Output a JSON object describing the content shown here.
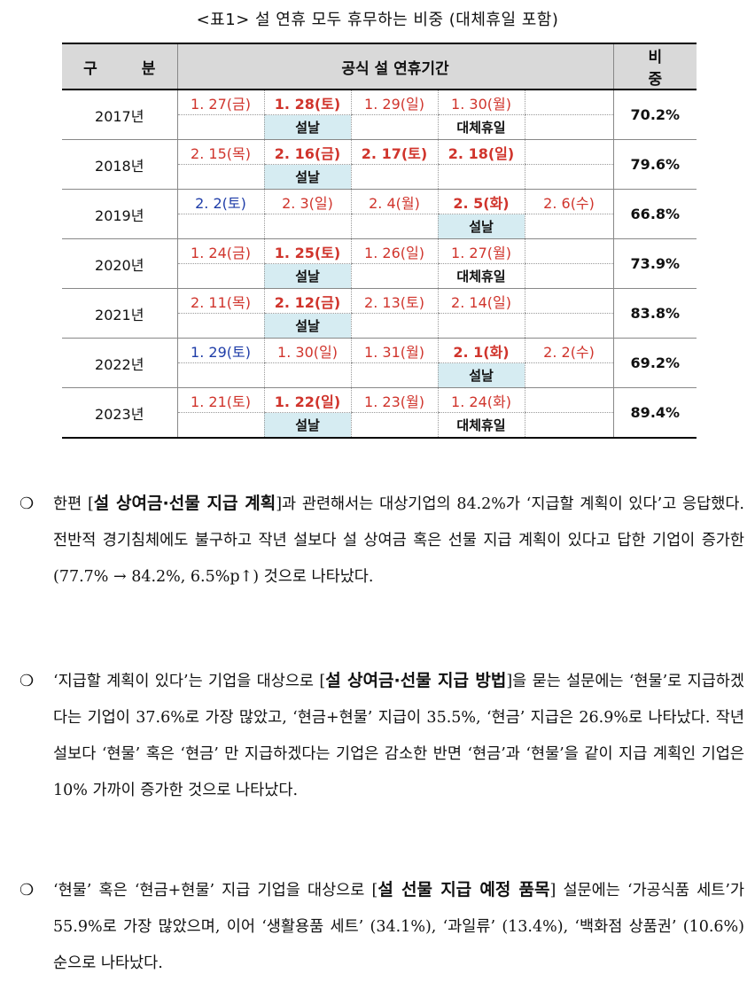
{
  "table": {
    "title": "<표1> 설 연휴 모두 휴무하는 비중 (대체휴일 포함)",
    "headers": {
      "year": "구 분",
      "period": "공식 설 연휴기간",
      "ratio": "비 중"
    },
    "rows": [
      {
        "year": "2017년",
        "ratio": "70.2%",
        "days": [
          {
            "text": "1. 27(금)"
          },
          {
            "text": "1. 28(토)",
            "bold": true
          },
          {
            "text": "1. 29(일)"
          },
          {
            "text": "1. 30(월)"
          },
          {
            "text": ""
          }
        ],
        "labels": [
          {
            "text": ""
          },
          {
            "text": "설날",
            "hl": true
          },
          {
            "text": ""
          },
          {
            "text": "대체휴일"
          },
          {
            "text": ""
          }
        ]
      },
      {
        "year": "2018년",
        "ratio": "79.6%",
        "days": [
          {
            "text": "2. 15(목)"
          },
          {
            "text": "2. 16(금)",
            "bold": true
          },
          {
            "text": "2. 17(토)",
            "bold": true
          },
          {
            "text": "2. 18(일)",
            "bold": true
          },
          {
            "text": ""
          }
        ],
        "labels": [
          {
            "text": ""
          },
          {
            "text": "설날",
            "hl": true
          },
          {
            "text": ""
          },
          {
            "text": ""
          },
          {
            "text": ""
          }
        ]
      },
      {
        "year": "2019년",
        "ratio": "66.8%",
        "days": [
          {
            "text": "2. 2(토)",
            "sat": true
          },
          {
            "text": "2. 3(일)"
          },
          {
            "text": "2. 4(월)"
          },
          {
            "text": "2. 5(화)",
            "bold": true
          },
          {
            "text": "2. 6(수)"
          }
        ],
        "labels": [
          {
            "text": ""
          },
          {
            "text": ""
          },
          {
            "text": ""
          },
          {
            "text": "설날",
            "hl": true
          },
          {
            "text": ""
          }
        ]
      },
      {
        "year": "2020년",
        "ratio": "73.9%",
        "days": [
          {
            "text": "1. 24(금)"
          },
          {
            "text": "1. 25(토)",
            "bold": true
          },
          {
            "text": "1. 26(일)"
          },
          {
            "text": "1. 27(월)"
          },
          {
            "text": ""
          }
        ],
        "labels": [
          {
            "text": ""
          },
          {
            "text": "설날",
            "hl": true
          },
          {
            "text": ""
          },
          {
            "text": "대체휴일"
          },
          {
            "text": ""
          }
        ]
      },
      {
        "year": "2021년",
        "ratio": "83.8%",
        "days": [
          {
            "text": "2. 11(목)"
          },
          {
            "text": "2. 12(금)",
            "bold": true
          },
          {
            "text": "2. 13(토)"
          },
          {
            "text": "2. 14(일)"
          },
          {
            "text": ""
          }
        ],
        "labels": [
          {
            "text": ""
          },
          {
            "text": "설날",
            "hl": true
          },
          {
            "text": ""
          },
          {
            "text": ""
          },
          {
            "text": ""
          }
        ]
      },
      {
        "year": "2022년",
        "ratio": "69.2%",
        "days": [
          {
            "text": "1. 29(토)",
            "sat": true
          },
          {
            "text": "1. 30(일)"
          },
          {
            "text": "1. 31(월)"
          },
          {
            "text": "2. 1(화)",
            "bold": true
          },
          {
            "text": "2. 2(수)"
          }
        ],
        "labels": [
          {
            "text": ""
          },
          {
            "text": ""
          },
          {
            "text": ""
          },
          {
            "text": "설날",
            "hl": true
          },
          {
            "text": ""
          }
        ]
      },
      {
        "year": "2023년",
        "ratio": "89.4%",
        "days": [
          {
            "text": "1. 21(토)"
          },
          {
            "text": "1. 22(일)",
            "bold": true
          },
          {
            "text": "1. 23(월)"
          },
          {
            "text": "1. 24(화)"
          },
          {
            "text": ""
          }
        ],
        "labels": [
          {
            "text": ""
          },
          {
            "text": "설날",
            "hl": true
          },
          {
            "text": ""
          },
          {
            "text": "대체휴일"
          },
          {
            "text": ""
          }
        ]
      }
    ]
  },
  "paragraphs": [
    {
      "bullet": "❍",
      "before": "한편 [",
      "bold": "설 상여금·선물 지급 계획",
      "after": "]과 관련해서는 대상기업의 84.2%가 ‘지급할 계획이 있다’고 응답했다. 전반적 경기침체에도 불구하고 작년 설보다 설 상여금 혹은 선물 지급 계획이 있다고 답한 기업이 증가한(77.7% → 84.2%, 6.5%p↑) 것으로 나타났다."
    },
    {
      "bullet": "❍",
      "before": "‘지급할 계획이 있다’는 기업을 대상으로 [",
      "bold": "설 상여금·선물 지급 방법",
      "after": "]을 묻는 설문에는 ‘현물’로 지급하겠다는 기업이 37.6%로 가장 많았고, ‘현금+현물’ 지급이 35.5%, ‘현금’ 지급은 26.9%로 나타났다. 작년 설보다 ‘현물’ 혹은 ‘현금’ 만 지급하겠다는 기업은 감소한 반면 ‘현금’과 ‘현물’을 같이 지급 계획인 기업은 10% 가까이 증가한 것으로 나타났다."
    },
    {
      "bullet": "❍",
      "before": "‘현물’ 혹은 ‘현금+현물’ 지급 기업을 대상으로 [",
      "bold": "설 선물 지급 예정 품목",
      "after": "] 설문에는 ‘가공식품 세트’가 55.9%로 가장 많았으며, 이어 ‘생활용품 세트’ (34.1%), ‘과일류’ (13.4%), ‘백화점 상품권’ (10.6%) 순으로 나타났다."
    }
  ]
}
